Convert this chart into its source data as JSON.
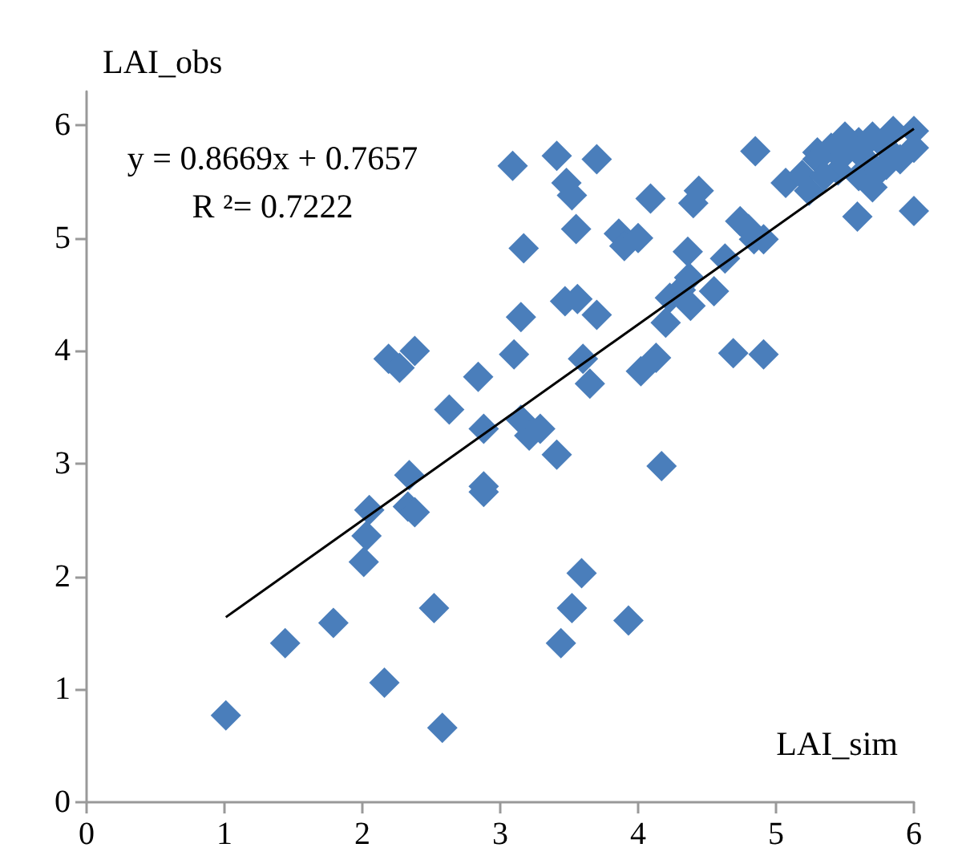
{
  "chart_data": {
    "type": "scatter",
    "xlabel": "LAI_sim",
    "ylabel": "LAI_obs",
    "xlim": [
      0,
      6
    ],
    "ylim": [
      0,
      6.3
    ],
    "xticks": [
      0,
      1,
      2,
      3,
      4,
      5,
      6
    ],
    "yticks": [
      0,
      1,
      2,
      3,
      4,
      5,
      6
    ],
    "grid": false,
    "marker": "diamond",
    "annotations": [
      "y = 0.8669x + 0.7657",
      "R ²= 0.7222"
    ],
    "series": [
      {
        "color": "#4a7ebb",
        "x": [
          1.01,
          1.44,
          1.79,
          2.16,
          2.58,
          2.52,
          2.01,
          2.03,
          2.05,
          2.33,
          2.38,
          2.34,
          2.19,
          2.27,
          2.38,
          2.63,
          2.84,
          2.88,
          2.88,
          2.88,
          3.09,
          3.1,
          3.15,
          3.17,
          3.15,
          3.21,
          3.29,
          3.41,
          3.41,
          3.48,
          3.52,
          3.55,
          3.47,
          3.56,
          3.6,
          3.65,
          3.7,
          3.7,
          3.44,
          3.52,
          3.59,
          3.93,
          3.86,
          3.9,
          4.0,
          4.02,
          4.13,
          4.09,
          4.17,
          4.2,
          4.23,
          4.31,
          4.37,
          4.38,
          4.36,
          4.44,
          4.4,
          4.55,
          4.63,
          4.69,
          4.74,
          4.8,
          4.84,
          4.91,
          4.91,
          4.85,
          5.07,
          5.19,
          5.3,
          5.24,
          5.59,
          6.0,
          5.3,
          5.4,
          5.45,
          5.5,
          5.5,
          5.6,
          5.6,
          5.65,
          5.7,
          5.75,
          5.8,
          5.85,
          5.9,
          6.0,
          5.35,
          5.8,
          5.7,
          6.0
        ],
        "values": [
          0.77,
          1.41,
          1.59,
          1.06,
          0.66,
          1.72,
          2.13,
          2.36,
          2.59,
          2.62,
          2.57,
          2.9,
          3.93,
          3.85,
          4.0,
          3.48,
          3.77,
          3.31,
          2.8,
          2.75,
          5.64,
          3.97,
          4.3,
          4.91,
          3.39,
          3.25,
          3.31,
          3.08,
          5.73,
          5.49,
          5.38,
          5.08,
          4.44,
          4.46,
          3.93,
          3.71,
          5.7,
          4.32,
          1.41,
          1.72,
          2.03,
          1.61,
          5.04,
          4.93,
          5.0,
          3.82,
          3.94,
          5.35,
          2.98,
          4.25,
          4.47,
          4.54,
          4.65,
          4.4,
          4.88,
          5.42,
          5.31,
          4.53,
          4.82,
          3.98,
          5.15,
          5.08,
          4.99,
          4.99,
          3.97,
          5.77,
          5.49,
          5.56,
          5.76,
          5.42,
          5.19,
          5.24,
          5.7,
          5.8,
          5.6,
          5.75,
          5.9,
          5.85,
          5.55,
          5.7,
          5.9,
          5.6,
          5.8,
          5.95,
          5.7,
          5.95,
          5.55,
          5.65,
          5.45,
          5.8
        ]
      },
      {
        "type": "line",
        "color": "#000000",
        "marker": "none",
        "x": [
          1.01,
          6.0
        ],
        "values": [
          1.64,
          5.97
        ]
      }
    ]
  }
}
